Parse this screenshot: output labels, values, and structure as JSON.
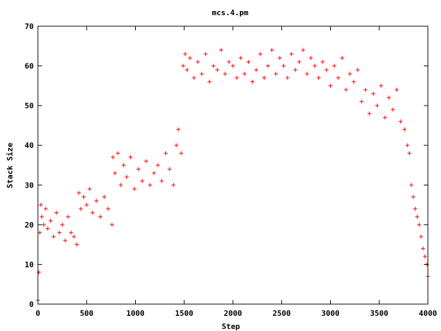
{
  "chart_data": {
    "type": "scatter",
    "title": "mcs.4.pm",
    "xlabel": "Step",
    "ylabel": "Stack Size",
    "xlim": [
      0,
      4000
    ],
    "ylim": [
      0,
      70
    ],
    "xticks": [
      0,
      500,
      1000,
      1500,
      2000,
      2500,
      3000,
      3500,
      4000
    ],
    "yticks": [
      0,
      10,
      20,
      30,
      40,
      50,
      60,
      70
    ],
    "grid": false,
    "legend": "none",
    "marker": "plus",
    "color": "#ff0000",
    "series": [
      {
        "x": [
          0,
          10,
          20,
          30,
          40,
          60,
          80,
          100,
          130,
          160,
          190,
          220,
          250,
          280,
          310,
          340,
          370,
          400,
          420,
          440,
          470,
          500,
          530,
          560,
          600,
          640,
          680,
          720,
          760,
          770,
          790,
          820,
          850,
          880,
          910,
          950,
          990,
          1030,
          1070,
          1110,
          1150,
          1190,
          1230,
          1270,
          1310,
          1350,
          1390,
          1420,
          1440,
          1470,
          1490,
          1510,
          1530,
          1560,
          1600,
          1640,
          1680,
          1720,
          1760,
          1800,
          1840,
          1880,
          1920,
          1960,
          2000,
          2040,
          2080,
          2120,
          2160,
          2200,
          2240,
          2280,
          2320,
          2360,
          2400,
          2440,
          2480,
          2520,
          2560,
          2600,
          2640,
          2680,
          2720,
          2760,
          2800,
          2840,
          2880,
          2920,
          2960,
          3000,
          3040,
          3080,
          3120,
          3160,
          3200,
          3240,
          3280,
          3320,
          3360,
          3400,
          3440,
          3480,
          3520,
          3560,
          3600,
          3640,
          3680,
          3720,
          3760,
          3790,
          3810,
          3830,
          3850,
          3870,
          3890,
          3910,
          3930,
          3950,
          3970,
          3990,
          4000
        ],
        "y": [
          1,
          8,
          18,
          25,
          22,
          20,
          24,
          19,
          21,
          17,
          23,
          18,
          20,
          16,
          22,
          18,
          17,
          15,
          28,
          24,
          27,
          25,
          29,
          23,
          26,
          22,
          27,
          24,
          20,
          37,
          33,
          38,
          30,
          35,
          32,
          37,
          29,
          34,
          31,
          36,
          30,
          33,
          35,
          31,
          38,
          34,
          30,
          40,
          44,
          38,
          60,
          63,
          59,
          62,
          57,
          61,
          58,
          63,
          56,
          60,
          59,
          64,
          58,
          61,
          60,
          57,
          62,
          58,
          61,
          56,
          59,
          63,
          57,
          60,
          64,
          58,
          62,
          60,
          57,
          63,
          59,
          61,
          64,
          58,
          62,
          60,
          57,
          61,
          59,
          55,
          60,
          57,
          62,
          54,
          58,
          56,
          59,
          51,
          54,
          48,
          53,
          50,
          55,
          47,
          52,
          49,
          54,
          46,
          44,
          40,
          38,
          30,
          27,
          24,
          22,
          20,
          17,
          14,
          12,
          10,
          7
        ]
      }
    ]
  }
}
